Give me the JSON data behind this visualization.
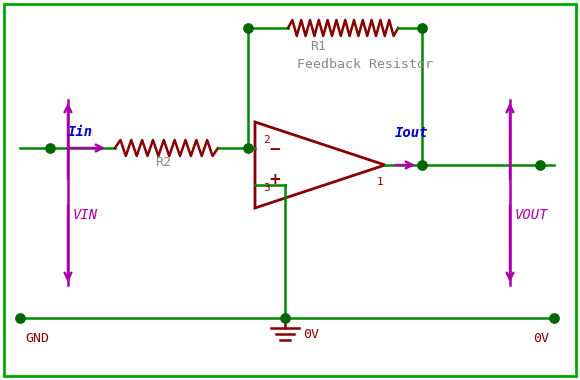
{
  "bg_color": "#ffffff",
  "border_color": "#00aa00",
  "wire_color": "#008800",
  "resistor_color": "#880000",
  "opamp_color": "#880000",
  "arrow_color": "#aa00aa",
  "label_color": "#0000cc",
  "text_color": "#888888",
  "gnd_color": "#880000",
  "dot_color": "#006600",
  "vin_label": "VIN",
  "vout_label": "VOUT",
  "gnd_label": "GND",
  "zeroV_bot": "0V",
  "zeroV_right": "0V",
  "iin_label": "Iin",
  "iout_label": "Iout",
  "r1_label": "R1",
  "r2_label": "R2",
  "feedback_label": "Feedback Resistor",
  "pin2_label": "2",
  "pin3_label": "3",
  "pin1_label": "1"
}
